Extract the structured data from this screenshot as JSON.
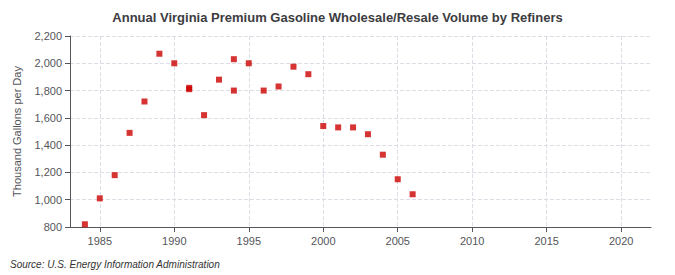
{
  "chart_data": {
    "type": "scatter",
    "title": "Annual Virginia Premium Gasoline Wholesale/Resale Volume by Refiners",
    "ylabel": "Thousand Gallons per Day",
    "annotation": "Source: U.S. Energy Information Administration",
    "x": [
      1984,
      1985,
      1986,
      1987,
      1988,
      1989,
      1990,
      1991,
      1991,
      1992,
      1993,
      1994,
      1994,
      1995,
      1996,
      1997,
      1998,
      1999,
      2000,
      2001,
      2002,
      2003,
      2004,
      2005,
      2006
    ],
    "values": [
      820,
      1010,
      1180,
      1490,
      1720,
      2070,
      2000,
      1820,
      1810,
      1620,
      1880,
      2030,
      1800,
      2000,
      1800,
      1830,
      1975,
      1920,
      1540,
      1530,
      1530,
      1480,
      1330,
      1150,
      1040
    ],
    "color": "#cc0000",
    "marker": "square",
    "xlim": [
      1983,
      2022
    ],
    "ylim": [
      800,
      2200
    ],
    "xticks": [
      1985,
      1990,
      1995,
      2000,
      2005,
      2010,
      2015,
      2020
    ],
    "yticks": [
      800,
      {
        "value": 1000,
        "label": "1,000"
      },
      {
        "value": 1200,
        "label": "1,200"
      },
      {
        "value": 1400,
        "label": "1,400"
      },
      {
        "value": 1600,
        "label": "1,600"
      },
      {
        "value": 1800,
        "label": "1,800"
      },
      {
        "value": 2000,
        "label": "2,000"
      },
      {
        "value": 2200,
        "label": "2,200"
      }
    ],
    "grid": true
  }
}
